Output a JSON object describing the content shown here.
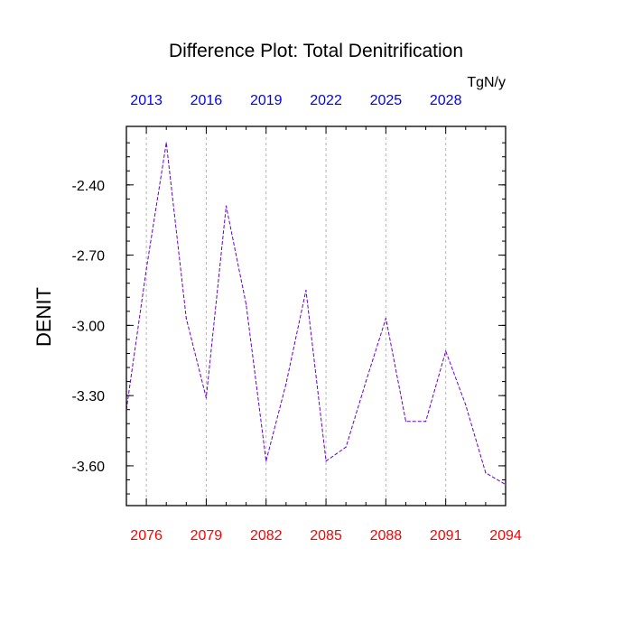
{
  "chart_data": {
    "type": "line",
    "title": "Difference Plot: Total Denitrification",
    "units": "TgN/y",
    "ylabel": "DENIT",
    "xlabel": "",
    "xlim": [
      2075,
      2094
    ],
    "ylim": [
      -3.77,
      -2.15
    ],
    "y_ticks": [
      -2.4,
      -2.7,
      -3.0,
      -3.3,
      -3.6
    ],
    "y_tick_labels": [
      "-2.40",
      "-2.70",
      "-3.00",
      "-3.30",
      "-3.60"
    ],
    "x_ticks_bottom": [
      2076,
      2079,
      2082,
      2085,
      2088,
      2091,
      2094
    ],
    "x_ticks_bottom_labels": [
      "2076",
      "2079",
      "2082",
      "2085",
      "2088",
      "2091",
      "2094"
    ],
    "x_ticks_top_labels": [
      "2013",
      "2016",
      "2019",
      "2022",
      "2025",
      "2028"
    ],
    "grid_x": true,
    "colors": {
      "bottom_axis": "#ff0000",
      "top_axis": "#0000ff",
      "line": "#6600cc",
      "grid": "#b4b4b4"
    },
    "series": [
      {
        "name": "DENIT",
        "x": [
          2075,
          2076,
          2077,
          2078,
          2079,
          2080,
          2081,
          2082,
          2083,
          2084,
          2085,
          2086,
          2087,
          2088,
          2089,
          2090,
          2091,
          2092,
          2093,
          2094
        ],
        "values": [
          -3.36,
          -2.76,
          -2.22,
          -2.97,
          -3.31,
          -2.49,
          -2.91,
          -3.58,
          -3.25,
          -2.85,
          -3.58,
          -3.52,
          -3.24,
          -2.97,
          -3.41,
          -3.41,
          -3.11,
          -3.34,
          -3.63,
          -3.68
        ]
      }
    ]
  }
}
